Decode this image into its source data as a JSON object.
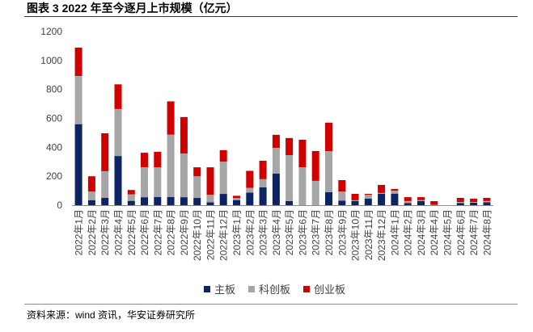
{
  "chart_data": {
    "type": "bar",
    "stacked": true,
    "title": "图表 3 2022 年至今逐月上市规模（亿元）",
    "categories": [
      "2022年1月",
      "2022年2月",
      "2022年3月",
      "2022年4月",
      "2022年5月",
      "2022年6月",
      "2022年7月",
      "2022年8月",
      "2022年9月",
      "2022年10月",
      "2022年11月",
      "2022年12月",
      "2023年1月",
      "2023年2月",
      "2023年3月",
      "2023年4月",
      "2023年5月",
      "2023年6月",
      "2023年7月",
      "2023年8月",
      "2023年9月",
      "2023年10月",
      "2023年11月",
      "2023年12月",
      "2024年1月",
      "2024年2月",
      "2024年3月",
      "2024年4月",
      "2024年5月",
      "2024年6月",
      "2024年7月",
      "2024年8月"
    ],
    "series": [
      {
        "name": "主板",
        "color": "#0D2464",
        "values": [
          560,
          35,
          50,
          340,
          30,
          55,
          57,
          57,
          55,
          50,
          20,
          78,
          35,
          87,
          123,
          218,
          28,
          0,
          0,
          90,
          32,
          28,
          45,
          78,
          80,
          15,
          28,
          0,
          0,
          15,
          17,
          20
        ]
      },
      {
        "name": "科创板",
        "color": "#A6A6A6",
        "values": [
          333,
          60,
          185,
          325,
          45,
          207,
          205,
          430,
          302,
          150,
          52,
          222,
          15,
          33,
          57,
          178,
          318,
          262,
          168,
          284,
          63,
          6,
          27,
          6,
          20,
          13,
          7,
          3,
          0,
          7,
          5,
          8
        ]
      },
      {
        "name": "创业板",
        "color": "#D00000",
        "values": [
          196,
          105,
          262,
          170,
          30,
          100,
          107,
          230,
          252,
          62,
          190,
          80,
          15,
          117,
          127,
          90,
          118,
          190,
          206,
          196,
          78,
          44,
          6,
          56,
          12,
          27,
          20,
          25,
          0,
          28,
          23,
          22
        ]
      }
    ],
    "xlabel": "",
    "ylabel": "",
    "ylim": [
      0,
      1200
    ],
    "yticks": [
      0,
      200,
      400,
      600,
      800,
      1000,
      1200
    ],
    "grid": false,
    "legend": "bottom"
  },
  "source": "资料来源：wind 资讯，华安证券研究所"
}
